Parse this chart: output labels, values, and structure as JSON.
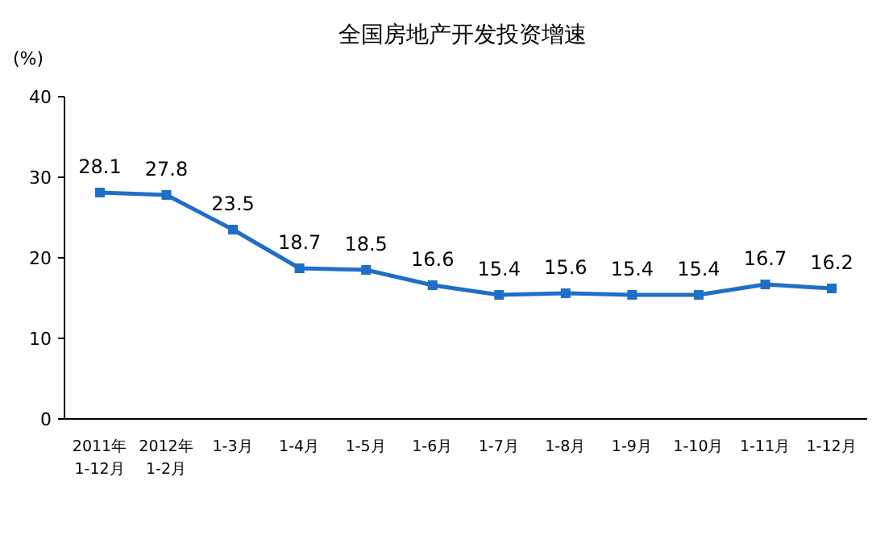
{
  "chart_data": {
    "type": "line",
    "title": "全国房地产开发投资增速",
    "ylabel": "(%)",
    "categories": [
      "2011年\n1-12月",
      "2012年\n1-2月",
      "1-3月",
      "1-4月",
      "1-5月",
      "1-6月",
      "1-7月",
      "1-8月",
      "1-9月",
      "1-10月",
      "1-11月",
      "1-12月"
    ],
    "series": [
      {
        "color": "#1f6ec8",
        "values": [
          28.1,
          27.8,
          23.5,
          18.7,
          18.5,
          16.6,
          15.4,
          15.6,
          15.4,
          15.4,
          16.7,
          16.2
        ]
      }
    ],
    "ylim": [
      0,
      40
    ],
    "yticks": [
      0,
      10,
      20,
      30,
      40
    ],
    "grid": false,
    "marker": "square",
    "line_style": "solid",
    "data_labels": true
  }
}
